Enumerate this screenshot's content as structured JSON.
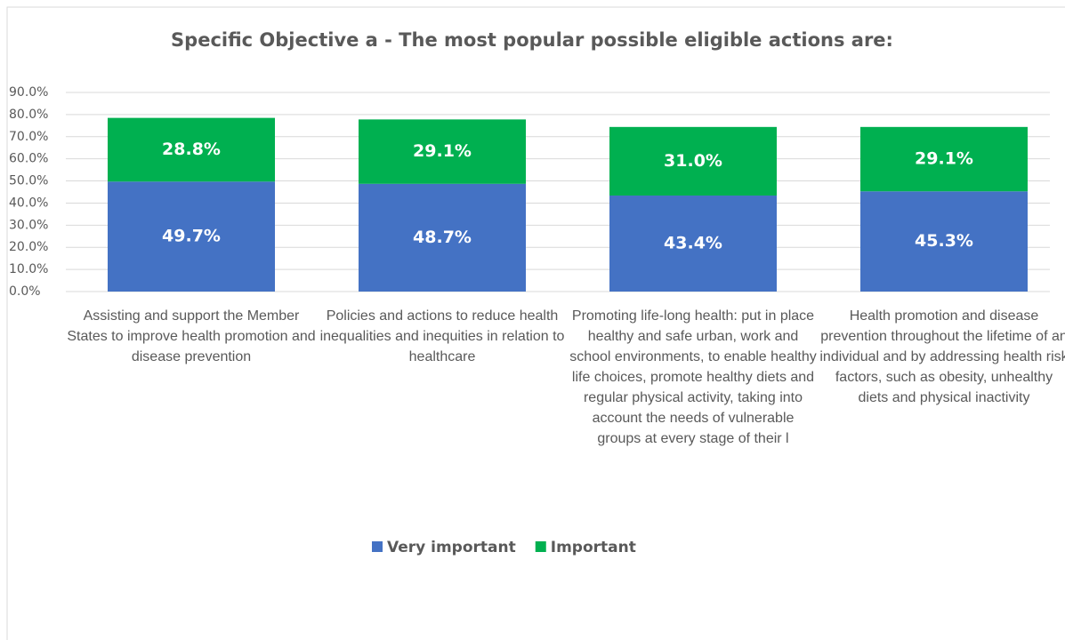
{
  "chart_data": {
    "type": "stacked_bar",
    "title": "Specific Objective  a - The most popular possible  eligible actions are:",
    "categories": [
      "Assisting and support the Member States to improve health promotion and disease prevention",
      "Policies and actions to reduce health inequalities and inequities in relation to healthcare",
      "Promoting life-long health: put in place healthy and safe urban, work and school environments, to enable healthy life choices, promote healthy diets and regular physical activity, taking into account the needs of vulnerable groups at every stage of their l",
      "Health promotion and disease prevention throughout the lifetime of an individual and by addressing health risk factors, such as obesity, unhealthy diets and physical inactivity"
    ],
    "series": [
      {
        "name": "Very important",
        "color": "#4472c4",
        "values": [
          49.7,
          48.7,
          43.4,
          45.3
        ],
        "value_labels": [
          "49.7%",
          "48.7%",
          "43.4%",
          "45.3%"
        ]
      },
      {
        "name": "Important",
        "color": "#00b050",
        "values": [
          28.8,
          29.1,
          31.0,
          29.1
        ],
        "value_labels": [
          "28.8%",
          "29.1%",
          "31.0%",
          "29.1%"
        ]
      }
    ],
    "ylim": [
      0,
      90
    ],
    "yticks": [
      {
        "value": 0,
        "label": "0.0%"
      },
      {
        "value": 10,
        "label": "10.0%"
      },
      {
        "value": 20,
        "label": "20.0%"
      },
      {
        "value": 30,
        "label": "30.0%"
      },
      {
        "value": 40,
        "label": "40.0%"
      },
      {
        "value": 50,
        "label": "50.0%"
      },
      {
        "value": 60,
        "label": "60.0%"
      },
      {
        "value": 70,
        "label": "70.0%"
      },
      {
        "value": 80,
        "label": "80.0%"
      },
      {
        "value": 90,
        "label": "90.0%"
      }
    ],
    "grid": true,
    "legend": "bottom"
  }
}
